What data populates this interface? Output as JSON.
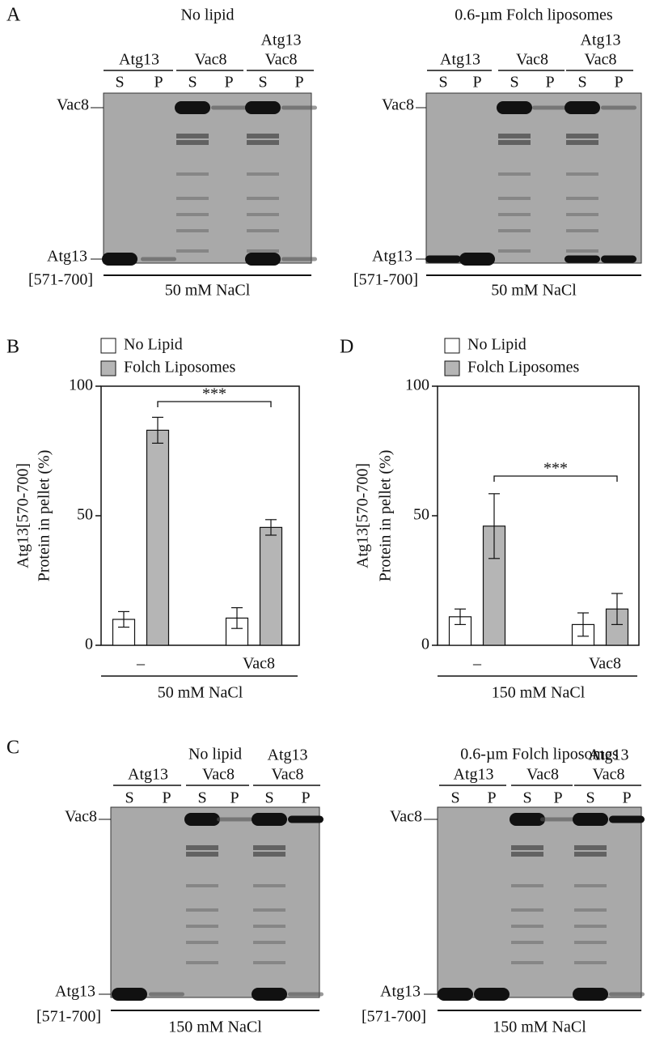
{
  "gels": [
    {
      "panel": "A",
      "title": "No lipid",
      "groups": [
        {
          "names": [
            "Atg13"
          ],
          "lanes": [
            "S",
            "P"
          ]
        },
        {
          "names": [
            "Vac8"
          ],
          "lanes": [
            "S",
            "P"
          ]
        },
        {
          "names": [
            "Atg13",
            "Vac8"
          ],
          "lanes": [
            "S",
            "P"
          ]
        }
      ],
      "band_labels": [
        "Vac8",
        "Atg13",
        "[571-700]"
      ],
      "condition": "50 mM NaCl"
    },
    {
      "title": "0.6-µm Folch liposomes",
      "groups": [
        {
          "names": [
            "Atg13"
          ],
          "lanes": [
            "S",
            "P"
          ]
        },
        {
          "names": [
            "Vac8"
          ],
          "lanes": [
            "S",
            "P"
          ]
        },
        {
          "names": [
            "Atg13",
            "Vac8"
          ],
          "lanes": [
            "S",
            "P"
          ]
        }
      ],
      "band_labels": [
        "Vac8",
        "Atg13",
        "[571-700]"
      ],
      "condition": "50 mM NaCl"
    },
    {
      "panel": "C",
      "title": "No lipid",
      "groups": [
        {
          "names": [
            "Atg13"
          ],
          "lanes": [
            "S",
            "P"
          ]
        },
        {
          "names": [
            "Vac8"
          ],
          "lanes": [
            "S",
            "P"
          ]
        },
        {
          "names": [
            "Atg13",
            "Vac8"
          ],
          "lanes": [
            "S",
            "P"
          ]
        }
      ],
      "band_labels": [
        "Vac8",
        "Atg13",
        "[571-700]"
      ],
      "condition": "150 mM NaCl"
    },
    {
      "title": "0.6-µm Folch liposomes",
      "groups": [
        {
          "names": [
            "Atg13"
          ],
          "lanes": [
            "S",
            "P"
          ]
        },
        {
          "names": [
            "Vac8"
          ],
          "lanes": [
            "S",
            "P"
          ]
        },
        {
          "names": [
            "Atg13",
            "Vac8"
          ],
          "lanes": [
            "S",
            "P"
          ]
        }
      ],
      "band_labels": [
        "Vac8",
        "Atg13",
        "[571-700]"
      ],
      "condition": "150 mM NaCl"
    }
  ],
  "chart_data": [
    {
      "type": "bar",
      "panel": "B",
      "categories": [
        "–",
        "Vac8"
      ],
      "xlabel": "50 mM NaCl",
      "ylabel": [
        "Atg13[570-700]",
        "Protein in pellet (%)"
      ],
      "series": [
        {
          "name": "No Lipid",
          "color": "#ffffff",
          "values": [
            10,
            10.5
          ],
          "errors": [
            3,
            4
          ]
        },
        {
          "name": "Folch Liposomes",
          "color": "#b5b5b5",
          "values": [
            83,
            45.5
          ],
          "errors": [
            5,
            3
          ]
        }
      ],
      "annotation": "***",
      "ylim": [
        0,
        100
      ],
      "yticks": [
        0,
        50,
        100
      ]
    },
    {
      "type": "bar",
      "panel": "D",
      "categories": [
        "–",
        "Vac8"
      ],
      "xlabel": "150 mM NaCl",
      "ylabel": [
        "Atg13[570-700]",
        "Protein in pellet (%)"
      ],
      "series": [
        {
          "name": "No Lipid",
          "color": "#ffffff",
          "values": [
            11,
            8
          ],
          "errors": [
            3,
            4.5
          ]
        },
        {
          "name": "Folch Liposomes",
          "color": "#b5b5b5",
          "values": [
            46,
            14
          ],
          "errors": [
            12.5,
            6
          ]
        }
      ],
      "annotation": "***",
      "ylim": [
        0,
        100
      ],
      "yticks": [
        0,
        50,
        100
      ]
    }
  ]
}
